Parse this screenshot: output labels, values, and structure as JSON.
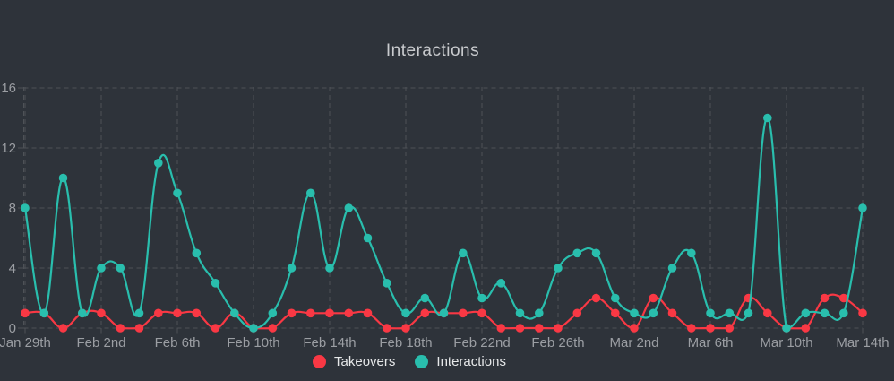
{
  "chart_data": {
    "type": "line",
    "title": "Interactions",
    "x_tick_labels": [
      "Jan 29th",
      "Feb 2nd",
      "Feb 6th",
      "Feb 10th",
      "Feb 14th",
      "Feb 18th",
      "Feb 22nd",
      "Feb 26th",
      "Mar 2nd",
      "Mar 6th",
      "Mar 10th",
      "Mar 14th"
    ],
    "x_tick_every": 4,
    "n_points": 45,
    "y_ticks": [
      0,
      4,
      8,
      12,
      16
    ],
    "ylim": [
      0,
      16
    ],
    "grid": "dashed",
    "legend_position": "bottom",
    "series": [
      {
        "name": "Takeovers",
        "color": "#f93844",
        "values": [
          1,
          1,
          0,
          1,
          1,
          0,
          0,
          1,
          1,
          1,
          0,
          1,
          0,
          0,
          1,
          1,
          1,
          1,
          1,
          0,
          0,
          1,
          1,
          1,
          1,
          0,
          0,
          0,
          0,
          1,
          2,
          1,
          0,
          2,
          1,
          0,
          0,
          0,
          2,
          1,
          0,
          0,
          2,
          2,
          1
        ]
      },
      {
        "name": "Interactions",
        "color": "#29bead",
        "values": [
          8,
          1,
          10,
          1,
          4,
          4,
          1,
          11,
          9,
          5,
          3,
          1,
          0,
          1,
          4,
          9,
          4,
          8,
          6,
          3,
          1,
          2,
          1,
          5,
          2,
          3,
          1,
          1,
          4,
          5,
          5,
          2,
          1,
          1,
          4,
          5,
          1,
          1,
          1,
          14,
          0,
          1,
          1,
          1,
          8
        ]
      }
    ]
  },
  "colors": {
    "background": "#2e333a",
    "grid": "#4e5257",
    "axis_label": "#9b9ea3",
    "title": "#c9cbce",
    "legend_text": "#e7e9ea"
  }
}
